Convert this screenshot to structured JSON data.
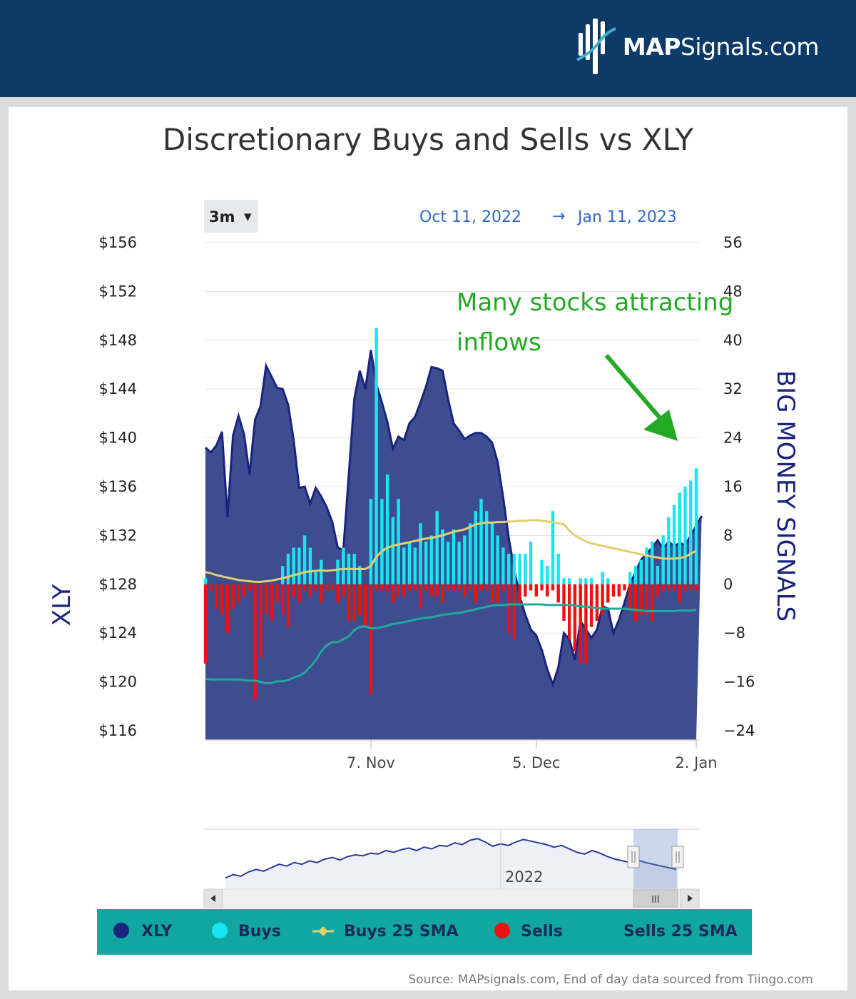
{
  "brand": {
    "logo_bold": "MAP",
    "logo_rest": "Signals.com"
  },
  "range_selector": {
    "label": "3m",
    "arrow": "▾"
  },
  "date_range": {
    "from": "Oct 11, 2022",
    "arrow": "→",
    "to": "Jan 11, 2023"
  },
  "annotation": {
    "line1": "Many stocks attracting",
    "line2": "inflows"
  },
  "navigator": {
    "year_label": "2022",
    "scroll_grip": "III"
  },
  "legend": [
    "XLY",
    "Buys",
    "Buys 25 SMA",
    "Sells",
    "Sells 25 SMA"
  ],
  "source": "Source: MAPsignals.com, End of day data sourced from Tiingo.com",
  "colors": {
    "header": "#0d3a66",
    "xly": "#1a237e",
    "xly_fill": "#3d4d8f",
    "buys": "#17e6f0",
    "sells": "#ee1111",
    "buys_sma": "#e0d070",
    "sells_sma": "#22a99a",
    "annotation": "#22aa22",
    "legend_bg": "#11a6a0"
  },
  "chart_data": {
    "type": "bar",
    "title": "Discretionary Buys and Sells vs XLY",
    "left_axis": {
      "title": "XLY",
      "ticks": [
        "$156",
        "$152",
        "$148",
        "$144",
        "$140",
        "$136",
        "$132",
        "$128",
        "$124",
        "$120",
        "$116"
      ],
      "range": [
        116,
        156
      ]
    },
    "right_axis": {
      "title": "BIG MONEY SIGNALS",
      "ticks": [
        "56",
        "48",
        "40",
        "32",
        "24",
        "16",
        "8",
        "0",
        "−8",
        "−16",
        "−24"
      ],
      "range": [
        -24,
        56
      ]
    },
    "x_ticks": [
      {
        "label": "7. Nov",
        "index": 30
      },
      {
        "label": "5. Dec",
        "index": 60
      },
      {
        "label": "2. Jan",
        "index": 89
      }
    ],
    "grid": true,
    "xly": [
      139.2,
      138.8,
      139.4,
      140.5,
      133.5,
      140.2,
      141.8,
      140.3,
      137.0,
      141.5,
      142.6,
      145.9,
      145.0,
      144.1,
      144.0,
      142.7,
      139.8,
      135.9,
      136.0,
      134.6,
      135.9,
      135.2,
      134.3,
      133.1,
      131.0,
      130.8,
      137.0,
      143.2,
      145.5,
      144.0,
      147.2,
      144.4,
      142.9,
      141.3,
      139.1,
      140.1,
      139.8,
      141.2,
      141.7,
      142.9,
      144.2,
      145.8,
      145.7,
      145.5,
      143.2,
      141.2,
      140.6,
      139.9,
      140.2,
      140.4,
      140.4,
      140.1,
      139.6,
      138.0,
      135.1,
      131.8,
      129.2,
      127.0,
      125.5,
      124.3,
      123.8,
      122.6,
      121.0,
      119.8,
      121.2,
      124.0,
      123.5,
      121.8,
      125.0,
      124.3,
      123.6,
      124.3,
      126.2,
      126.0,
      124.0,
      125.1,
      126.5,
      128.0,
      129.0,
      130.0,
      130.5,
      131.0,
      131.6,
      130.9,
      131.5,
      131.1,
      131.4,
      131.2,
      132.0,
      132.8,
      133.6
    ],
    "buys": [
      1,
      0,
      0,
      0,
      0,
      0,
      0,
      0,
      0,
      0,
      0,
      0,
      0,
      0,
      3,
      5,
      6,
      6,
      8,
      6,
      2,
      4,
      0,
      0,
      4,
      6,
      5,
      5,
      3,
      0,
      14,
      42,
      14,
      18,
      11,
      14,
      6,
      7,
      6,
      10,
      7,
      8,
      12,
      9,
      7,
      9,
      7,
      8,
      10,
      12,
      14,
      12,
      10,
      8,
      6,
      5,
      5,
      5,
      5,
      7,
      0,
      4,
      3,
      12,
      5,
      1,
      1,
      0,
      1,
      1,
      1,
      0,
      2,
      1,
      0,
      0,
      0,
      2,
      3,
      4,
      6,
      7,
      3,
      8,
      11,
      13,
      15,
      16,
      17,
      19
    ],
    "buys_sma": [
      2.0,
      1.8,
      1.5,
      1.3,
      1.1,
      0.9,
      0.7,
      0.6,
      0.5,
      0.4,
      0.4,
      0.5,
      0.6,
      0.8,
      1.0,
      1.2,
      1.5,
      1.7,
      2.0,
      2.1,
      2.2,
      2.3,
      2.2,
      2.3,
      2.4,
      2.5,
      2.5,
      2.5,
      2.5,
      2.5,
      3.0,
      4.5,
      5.4,
      6.0,
      6.3,
      6.5,
      6.7,
      6.9,
      7.1,
      7.3,
      7.5,
      7.6,
      7.8,
      8.0,
      8.3,
      8.6,
      8.8,
      9.0,
      9.4,
      9.8,
      10.0,
      10.1,
      10.1,
      10.2,
      10.2,
      10.3,
      10.3,
      10.4,
      10.4,
      10.5,
      10.5,
      10.4,
      10.3,
      10.2,
      10.0,
      9.8,
      8.8,
      8.0,
      7.5,
      7.0,
      6.7,
      6.5,
      6.3,
      6.1,
      5.9,
      5.7,
      5.5,
      5.3,
      5.1,
      4.9,
      4.7,
      4.5,
      4.4,
      4.2,
      4.2,
      4.2,
      4.3,
      4.5,
      5.0,
      5.5
    ],
    "sells": [
      -13,
      -1,
      -4,
      -5,
      -8,
      -4,
      -3,
      -2,
      -1,
      -19,
      -12,
      -5,
      -6,
      -3,
      -5,
      -7,
      -2,
      -3,
      -1,
      -2,
      -1,
      -3,
      -1,
      -1,
      -3,
      -2,
      -6,
      -6,
      -5,
      -7,
      -18,
      -1,
      -1,
      -1,
      -3,
      -2,
      -2,
      -1,
      -1,
      -4,
      -1,
      -2,
      -2,
      -3,
      -1,
      -1,
      -1,
      -2,
      -1,
      -3,
      -1,
      -1,
      -3,
      -3,
      -1,
      -8,
      -9,
      -3,
      -2,
      -1,
      -2,
      -1,
      -2,
      -1,
      -3,
      -6,
      -9,
      -11,
      -13,
      -13,
      -7,
      -6,
      -5,
      -3,
      -2,
      -2,
      -1,
      -4,
      -6,
      -5,
      -5,
      -6,
      -2,
      -1,
      -1,
      -1,
      -3,
      -1,
      -1,
      -1
    ],
    "sells_sma": [
      -15.5,
      -15.6,
      -15.6,
      -15.6,
      -15.6,
      -15.6,
      -15.6,
      -15.7,
      -15.8,
      -15.8,
      -16.0,
      -16.2,
      -16.2,
      -15.9,
      -15.9,
      -15.7,
      -15.3,
      -15.0,
      -14.5,
      -13.5,
      -12.5,
      -11.0,
      -10.0,
      -9.5,
      -9.5,
      -9.0,
      -8.5,
      -7.5,
      -7.0,
      -6.9,
      -7.2,
      -7.2,
      -7.0,
      -6.8,
      -6.5,
      -6.4,
      -6.2,
      -6.0,
      -5.8,
      -5.6,
      -5.5,
      -5.4,
      -5.2,
      -5.0,
      -4.9,
      -4.8,
      -4.7,
      -4.5,
      -4.3,
      -4.1,
      -3.9,
      -3.7,
      -3.5,
      -3.4,
      -3.4,
      -3.3,
      -3.3,
      -3.3,
      -3.3,
      -3.3,
      -3.3,
      -3.3,
      -3.4,
      -3.4,
      -3.4,
      -3.4,
      -3.4,
      -3.5,
      -3.6,
      -3.7,
      -3.8,
      -3.9,
      -4.0,
      -4.0,
      -4.0,
      -4.0,
      -4.0,
      -4.1,
      -4.2,
      -4.3,
      -4.4,
      -4.4,
      -4.4,
      -4.4,
      -4.4,
      -4.4,
      -4.3,
      -4.3,
      -4.3,
      -4.2
    ],
    "navigator_series": [
      108,
      112,
      110,
      115,
      118,
      116,
      120,
      124,
      122,
      126,
      124,
      128,
      126,
      130,
      132,
      129,
      133,
      135,
      134,
      137,
      136,
      140,
      138,
      141,
      143,
      140,
      144,
      142,
      146,
      145,
      149,
      147,
      152,
      154,
      150,
      145,
      148,
      146,
      150,
      153,
      151,
      149,
      147,
      144,
      146,
      142,
      138,
      136,
      140,
      137,
      133,
      130,
      128,
      126,
      129,
      126,
      124,
      122,
      120,
      118
    ],
    "legend_placement": "bottom"
  }
}
